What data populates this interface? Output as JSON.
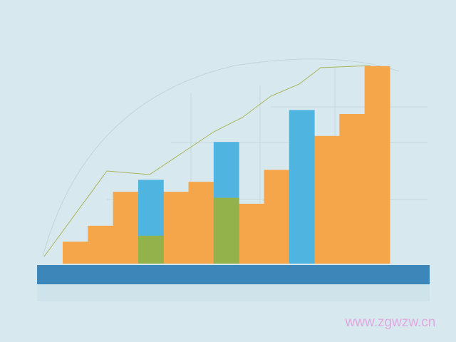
{
  "chart_data": {
    "type": "bar",
    "categories": [
      null,
      null,
      null,
      null,
      null,
      null,
      null,
      null,
      null,
      null,
      null,
      null,
      null
    ],
    "series": [
      {
        "color": "#f5a64b",
        "values": [
          11,
          19,
          36,
          null,
          36,
          41,
          null,
          30,
          47,
          null,
          64,
          75,
          99
        ]
      },
      {
        "color": "#4fb4df",
        "values": [
          null,
          null,
          null,
          42,
          null,
          null,
          61,
          null,
          null,
          77,
          null,
          null,
          null
        ]
      },
      {
        "color": "#93b24c",
        "values": [
          null,
          null,
          null,
          14,
          null,
          null,
          33,
          null,
          null,
          null,
          null,
          null,
          null
        ]
      }
    ],
    "ylim": [
      0,
      100
    ],
    "watermark": "www.zgwzw.cn"
  }
}
